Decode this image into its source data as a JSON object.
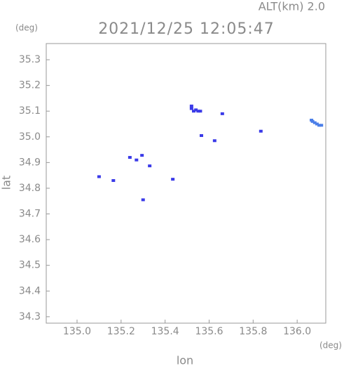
{
  "chart_data": {
    "type": "scatter",
    "title": "2021/12/25 12:05:47",
    "subtitle": "ALT(km) 2.0",
    "x_label": "lon",
    "y_label": "lat",
    "x_unit": "(deg)",
    "y_unit": "(deg)",
    "xlim": [
      134.86,
      136.13
    ],
    "ylim": [
      34.275,
      35.363
    ],
    "xticks": [
      {
        "value": 135.0,
        "label": "135.0"
      },
      135.2,
      135.4,
      135.6,
      135.8,
      {
        "value": 136.0,
        "label": "136.0"
      }
    ],
    "yticks": [
      34.3,
      34.4,
      34.5,
      34.6,
      34.7,
      34.8,
      34.9,
      {
        "value": 35.0,
        "label": "35.0"
      },
      35.1,
      35.2,
      35.3
    ],
    "series": [
      {
        "color": "#3a3ae8",
        "x": [
          135.52,
          135.53,
          135.54,
          135.55,
          135.56,
          135.52,
          135.66,
          135.565,
          135.625,
          135.835,
          135.1,
          135.165,
          135.24,
          135.27,
          135.295,
          135.33,
          135.435,
          135.3
        ],
        "y": [
          35.11,
          35.1,
          35.105,
          35.1,
          35.1,
          35.12,
          35.09,
          35.005,
          34.985,
          35.022,
          34.845,
          34.83,
          34.92,
          34.91,
          34.928,
          34.887,
          34.835,
          34.755
        ]
      },
      {
        "color": "#4a7ee8",
        "x": [
          136.07,
          136.08,
          136.09,
          136.1,
          136.11,
          136.065
        ],
        "y": [
          35.06,
          35.055,
          35.05,
          35.045,
          35.045,
          35.065
        ]
      }
    ]
  }
}
